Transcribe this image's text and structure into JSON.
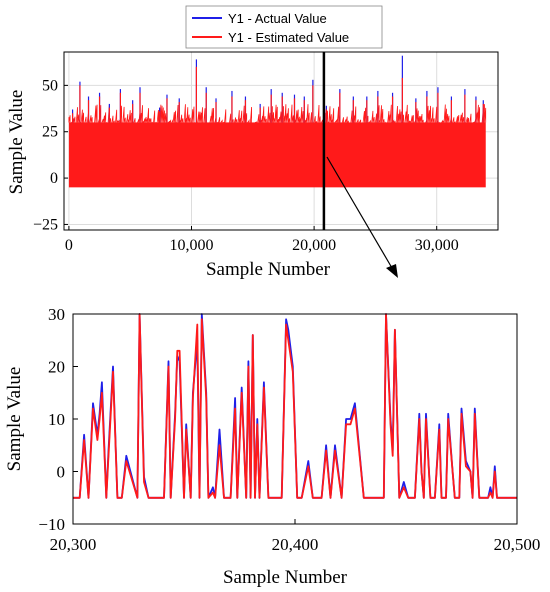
{
  "legend": {
    "entries": [
      {
        "label": "Y1 - Actual Value",
        "color": "#1f1fe8"
      },
      {
        "label": "Y1 - Estimated Value",
        "color": "#ff1a1a"
      }
    ]
  },
  "chart_data": [
    {
      "type": "line",
      "xlabel": "Sample Number",
      "ylabel": "Sample Value",
      "xlim": [
        -400,
        35000
      ],
      "ylim": [
        -28,
        68
      ],
      "xticks": [
        0,
        10000,
        20000,
        30000
      ],
      "xtick_labels": [
        "0",
        "10,000",
        "20,000",
        "30,000"
      ],
      "yticks": [
        -25,
        0,
        25,
        50
      ],
      "ytick_labels": [
        "−25",
        "0",
        "25",
        "50"
      ],
      "grid": true,
      "legend_position": "top",
      "zoom_marker_x": 20800,
      "x_extent": [
        0,
        34000
      ],
      "baseline": -5,
      "dense_band_top": 30,
      "series": [
        {
          "name": "Y1 - Actual Value",
          "color": "#1f1fe8"
        },
        {
          "name": "Y1 - Estimated Value",
          "color": "#ff1a1a"
        }
      ],
      "peaks_x": [
        300,
        900,
        1600,
        2500,
        3300,
        4200,
        5200,
        5800,
        7400,
        8000,
        9000,
        10400,
        11200,
        12000,
        13300,
        14400,
        15600,
        16500,
        17400,
        18400,
        19200,
        19900,
        21000,
        22100,
        23200,
        24300,
        25200,
        26400,
        27200,
        28300,
        29200,
        30100,
        31200,
        32300,
        33200,
        33800
      ],
      "peaks_actual": [
        37,
        52,
        44,
        46,
        40,
        48,
        42,
        49,
        38,
        45,
        43,
        64,
        49,
        43,
        47,
        44,
        40,
        48,
        46,
        45,
        44,
        53,
        39,
        48,
        44,
        44,
        47,
        46,
        66,
        43,
        47,
        49,
        44,
        48,
        44,
        42
      ],
      "peaks_estimated": [
        35,
        50,
        42,
        44,
        38,
        46,
        40,
        46,
        36,
        43,
        41,
        60,
        46,
        41,
        44,
        42,
        38,
        45,
        44,
        43,
        42,
        50,
        37,
        46,
        42,
        42,
        44,
        44,
        54,
        41,
        44,
        46,
        42,
        45,
        42,
        40
      ]
    },
    {
      "type": "line",
      "xlabel": "Sample Number",
      "ylabel": "Sample Value",
      "xlim": [
        20300,
        20500
      ],
      "ylim": [
        -10,
        30
      ],
      "xticks": [
        20300,
        20400,
        20500
      ],
      "xtick_labels": [
        "20,300",
        "20,400",
        "20,500"
      ],
      "yticks": [
        -10,
        0,
        10,
        20,
        30
      ],
      "ytick_labels": [
        "−10",
        "0",
        "10",
        "20",
        "30"
      ],
      "grid": false,
      "series": [
        {
          "name": "Y1 - Actual Value",
          "color": "#1f1fe8",
          "x": [
            20300,
            20303,
            20305,
            20307,
            20309,
            20311,
            20312,
            20313,
            20315,
            20316,
            20318,
            20320,
            20322,
            20324,
            20329,
            20330,
            20332,
            20334,
            20336,
            20341,
            20343,
            20344,
            20346,
            20347,
            20348,
            20350,
            20351,
            20353,
            20354,
            20356,
            20357,
            20358,
            20360,
            20361,
            20363,
            20364,
            20366,
            20368,
            20371,
            20373,
            20374,
            20376,
            20378,
            20379,
            20380,
            20381,
            20382,
            20383,
            20384,
            20386,
            20388,
            20390,
            20392,
            20394,
            20396,
            20397,
            20399,
            20401,
            20403,
            20406,
            20408,
            20410,
            20412,
            20414,
            20416,
            20418,
            20421,
            20423,
            20425,
            20427,
            20431,
            20434,
            20437,
            20440,
            20441,
            20443,
            20444,
            20445,
            20447,
            20449,
            20451,
            20452,
            20454,
            20456,
            20457,
            20458,
            20459,
            20461,
            20463,
            20465,
            20466,
            20468,
            20469,
            20471,
            20472,
            20473,
            20474,
            20475,
            20477,
            20479,
            20480,
            20481,
            20483,
            20485,
            20486,
            20487,
            20488,
            20489,
            20490,
            20491,
            20500
          ],
          "y": [
            -5,
            -5,
            7,
            -5,
            13,
            7,
            11,
            17,
            -5,
            4,
            20,
            -5,
            -5,
            3,
            -5,
            30,
            -1,
            -5,
            -5,
            -5,
            21,
            -5,
            11,
            22,
            21,
            -5,
            9,
            -5,
            15,
            25,
            -5,
            30,
            15,
            -5,
            -3,
            -5,
            8,
            -5,
            -5,
            14,
            -5,
            16,
            -5,
            21,
            -5,
            26,
            -5,
            10,
            -5,
            17,
            -5,
            -5,
            -5,
            -5,
            29,
            27,
            20,
            -5,
            -5,
            2,
            -5,
            -5,
            -5,
            5,
            -5,
            5,
            -5,
            10,
            10,
            13,
            -5,
            -5,
            -5,
            -5,
            30,
            10,
            4,
            27,
            -5,
            -2,
            -5,
            -5,
            -5,
            11,
            0,
            -5,
            11,
            -5,
            -5,
            9,
            -5,
            -5,
            11,
            0,
            -5,
            -5,
            -5,
            12,
            2,
            0,
            -5,
            12,
            -5,
            -5,
            -5,
            -5,
            -3,
            -5,
            1,
            -5,
            -5
          ],
          "note_peaks": "blue line close to red, slight overshoots"
        },
        {
          "name": "Y1 - Estimated Value",
          "color": "#ff1a1a",
          "x": [
            20300,
            20303,
            20305,
            20307,
            20309,
            20311,
            20312,
            20313,
            20315,
            20316,
            20318,
            20320,
            20322,
            20324,
            20329,
            20330,
            20332,
            20334,
            20336,
            20341,
            20343,
            20344,
            20346,
            20347,
            20348,
            20350,
            20351,
            20353,
            20354,
            20356,
            20357,
            20358,
            20360,
            20361,
            20363,
            20364,
            20366,
            20368,
            20371,
            20373,
            20374,
            20376,
            20378,
            20379,
            20380,
            20381,
            20382,
            20383,
            20384,
            20386,
            20388,
            20390,
            20392,
            20394,
            20396,
            20397,
            20399,
            20401,
            20403,
            20406,
            20408,
            20410,
            20412,
            20414,
            20416,
            20418,
            20421,
            20423,
            20425,
            20427,
            20431,
            20434,
            20437,
            20440,
            20441,
            20443,
            20444,
            20445,
            20447,
            20449,
            20451,
            20452,
            20454,
            20456,
            20457,
            20458,
            20459,
            20461,
            20463,
            20465,
            20466,
            20468,
            20469,
            20471,
            20472,
            20473,
            20474,
            20475,
            20477,
            20479,
            20480,
            20481,
            20483,
            20485,
            20486,
            20487,
            20488,
            20489,
            20490,
            20491,
            20500
          ],
          "y": [
            -5,
            -5,
            6,
            -5,
            12,
            6,
            10,
            15,
            -5,
            3,
            19,
            -5,
            -5,
            2,
            -5,
            30,
            -2,
            -5,
            -5,
            -5,
            20,
            -5,
            10,
            23,
            23,
            -5,
            8,
            -5,
            14,
            28,
            -5,
            29,
            14,
            -5,
            -4,
            -5,
            5,
            -5,
            -5,
            12,
            -5,
            15,
            -5,
            20,
            -5,
            26,
            -5,
            9,
            -5,
            16,
            -5,
            -5,
            -5,
            -5,
            28,
            25,
            19,
            -5,
            -5,
            1,
            -5,
            -5,
            -5,
            4,
            -5,
            4,
            -5,
            9,
            9,
            12,
            -5,
            -5,
            -5,
            -5,
            30,
            9,
            3,
            27,
            -5,
            -3,
            -5,
            -5,
            -5,
            10,
            0,
            -5,
            10,
            -5,
            -5,
            8,
            -5,
            -5,
            10,
            0,
            -5,
            -5,
            -5,
            11,
            1,
            0,
            -5,
            11,
            -5,
            -5,
            -5,
            -5,
            -4,
            -5,
            0,
            -5,
            -5
          ]
        }
      ]
    }
  ]
}
